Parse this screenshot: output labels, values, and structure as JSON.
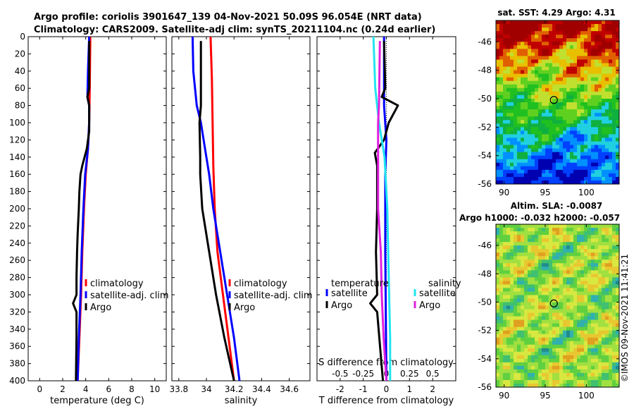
{
  "title": {
    "line1": "Argo profile: coriolis 3901647_139 04-Nov-2021 50.09S 96.054E (NRT data)",
    "line2": "Climatology: CARS2009. Satellite-adj clim: synTS_20211104.nc (0.24d earlier)"
  },
  "copyright": "©IMOS 09-Nov-2021 11:41:21",
  "colors": {
    "climatology": "#ff0000",
    "satellite": "#0000ff",
    "argo": "#000000",
    "sat_salinity": "#22e5f0",
    "argo_salinity": "#e020e0"
  },
  "chart_data": [
    {
      "type": "line",
      "name": "temperature",
      "xlabel": "temperature (deg C)",
      "xlim": [
        -1,
        11
      ],
      "xticks": [
        0,
        2,
        4,
        6,
        8,
        10
      ],
      "xtick_labels": [
        "0",
        "2",
        "4",
        "6",
        "8",
        "10"
      ],
      "ylim": [
        0,
        400
      ],
      "yticks": [
        0,
        20,
        40,
        60,
        80,
        100,
        120,
        140,
        160,
        180,
        200,
        220,
        240,
        260,
        280,
        300,
        320,
        340,
        360,
        380,
        400
      ],
      "ytick_labels": [
        "0",
        "20",
        "40",
        "60",
        "80",
        "100",
        "120",
        "140",
        "160",
        "180",
        "200",
        "220",
        "240",
        "260",
        "280",
        "300",
        "320",
        "340",
        "360",
        "380",
        "400"
      ],
      "legend": [
        "climatology",
        "satellite-adj. clim",
        "Argo"
      ],
      "series": [
        {
          "name": "climatology",
          "color": "#ff0000",
          "depth": [
            0,
            60,
            100,
            130,
            160,
            200,
            250,
            300,
            350,
            400
          ],
          "values": [
            4.4,
            4.35,
            4.3,
            4.2,
            4.0,
            3.85,
            3.7,
            3.6,
            3.45,
            3.3
          ]
        },
        {
          "name": "satellite-adj. clim",
          "color": "#0000ff",
          "depth": [
            0,
            40,
            70,
            80,
            100,
            130,
            160,
            200,
            250,
            300,
            350,
            400
          ],
          "values": [
            4.3,
            4.2,
            4.15,
            4.3,
            4.3,
            4.2,
            3.95,
            3.8,
            3.65,
            3.55,
            3.4,
            3.3
          ]
        },
        {
          "name": "Argo",
          "color": "#000000",
          "depth": [
            5,
            60,
            70,
            80,
            110,
            130,
            150,
            160,
            180,
            200,
            230,
            250,
            280,
            300,
            310,
            320,
            350,
            400
          ],
          "values": [
            4.3,
            4.3,
            4.15,
            4.3,
            4.3,
            4.1,
            3.7,
            3.55,
            3.45,
            3.4,
            3.3,
            3.25,
            3.2,
            3.2,
            2.9,
            3.2,
            3.2,
            3.15
          ]
        }
      ]
    },
    {
      "type": "line",
      "name": "salinity",
      "xlabel": "salinity",
      "xlim": [
        33.75,
        34.75
      ],
      "xticks": [
        33.8,
        34.0,
        34.2,
        34.4,
        34.6
      ],
      "xtick_labels": [
        "33.8",
        "34",
        "34.2",
        "34.4",
        "34.6"
      ],
      "ylim": [
        0,
        400
      ],
      "legend": [
        "climatology",
        "satellite-adj. clim",
        "Argo"
      ],
      "series": [
        {
          "name": "climatology",
          "color": "#ff0000",
          "depth": [
            0,
            50,
            100,
            150,
            200,
            250,
            300,
            350,
            400
          ],
          "values": [
            34.03,
            34.04,
            34.045,
            34.05,
            34.06,
            34.08,
            34.12,
            34.16,
            34.2
          ]
        },
        {
          "name": "satellite-adj. clim",
          "color": "#0000ff",
          "depth": [
            0,
            40,
            80,
            100,
            130,
            160,
            200,
            250,
            300,
            350,
            400
          ],
          "values": [
            33.9,
            33.905,
            33.93,
            33.96,
            33.99,
            34.02,
            34.05,
            34.1,
            34.15,
            34.2,
            34.24
          ]
        },
        {
          "name": "Argo",
          "color": "#000000",
          "depth": [
            5,
            60,
            80,
            100,
            140,
            160,
            200,
            250,
            300,
            350,
            400
          ],
          "values": [
            33.96,
            33.96,
            33.96,
            33.95,
            33.955,
            33.955,
            33.97,
            34.02,
            34.07,
            34.13,
            34.2
          ]
        }
      ]
    },
    {
      "type": "line",
      "name": "difference from climatology",
      "xlabel": "T difference from climatology",
      "xlabel_top": "S difference from climatology",
      "xlim": [
        -3,
        3
      ],
      "xticks": [
        -2,
        -1,
        0,
        1,
        2
      ],
      "xtick_labels": [
        "-2",
        "-1",
        "0",
        "1",
        "2"
      ],
      "top_xlim": [
        -0.75,
        0.75
      ],
      "top_xticks": [
        -0.5,
        -0.25,
        0,
        0.25,
        0.5
      ],
      "top_xtick_labels": [
        "-0.5",
        "-0.25",
        "0",
        "0.25",
        "0.5"
      ],
      "ylim": [
        0,
        400
      ],
      "legend_left_title": "temperature",
      "legend_right_title": "salinity",
      "legend_left": [
        "satellite",
        "Argo"
      ],
      "legend_right": [
        "satellite",
        "Argo"
      ],
      "series": [
        {
          "name": "temperature satellite",
          "color": "#0000ff",
          "axis": "T",
          "depth": [
            0,
            80,
            120,
            160,
            250,
            400
          ],
          "values": [
            -0.1,
            -0.1,
            0,
            -0.05,
            -0.05,
            0
          ]
        },
        {
          "name": "temperature Argo",
          "color": "#000000",
          "axis": "T",
          "depth": [
            5,
            60,
            70,
            80,
            100,
            120,
            135,
            150,
            160,
            200,
            250,
            300,
            310,
            320,
            400
          ],
          "values": [
            -0.1,
            -0.05,
            -0.2,
            0.5,
            0.1,
            -0.1,
            -0.5,
            -0.4,
            -0.4,
            -0.4,
            -0.45,
            -0.4,
            -0.7,
            -0.4,
            -0.15
          ]
        },
        {
          "name": "salinity satellite",
          "color": "#22e5f0",
          "axis": "S",
          "depth": [
            0,
            60,
            100,
            140,
            200,
            250,
            300,
            350,
            400
          ],
          "values": [
            -0.14,
            -0.12,
            -0.08,
            -0.02,
            0.01,
            0.02,
            0.03,
            0.04,
            0.04
          ]
        },
        {
          "name": "salinity Argo",
          "color": "#e020e0",
          "axis": "S",
          "depth": [
            5,
            80,
            100,
            140,
            160,
            200,
            250,
            300,
            350,
            400
          ],
          "values": [
            -0.07,
            -0.08,
            -0.09,
            -0.09,
            -0.09,
            -0.09,
            -0.06,
            -0.05,
            -0.03,
            0.0
          ]
        }
      ]
    },
    {
      "type": "heatmap",
      "name": "satellite SST map",
      "title": "sat. SST: 4.29 Argo: 4.31",
      "xlim": [
        89,
        104
      ],
      "ylim": [
        -56,
        -44.5
      ],
      "xticks": [
        90,
        95,
        100
      ],
      "xtick_labels": [
        "90",
        "95",
        "100"
      ],
      "yticks": [
        -56,
        -54,
        -52,
        -50,
        -48,
        -46
      ],
      "ytick_labels": [
        "-56",
        "-54",
        "-52",
        "-50",
        "-48",
        "-46"
      ],
      "marker": {
        "lon": 96.05,
        "lat": -50.09
      }
    },
    {
      "type": "heatmap",
      "name": "altimetry SLA map",
      "title_line1": "Altim. SLA: -0.0087",
      "title_line2": "Argo h1000: -0.032 h2000: -0.057",
      "xlim": [
        89,
        104
      ],
      "ylim": [
        -56,
        -44.5
      ],
      "xticks": [
        90,
        95,
        100
      ],
      "xtick_labels": [
        "90",
        "95",
        "100"
      ],
      "yticks": [
        -56,
        -54,
        -52,
        -50,
        -48,
        -46
      ],
      "ytick_labels": [
        "-56",
        "-54",
        "-52",
        "-50",
        "-48",
        "-46"
      ],
      "marker": {
        "lon": 96.05,
        "lat": -50.09
      }
    }
  ]
}
